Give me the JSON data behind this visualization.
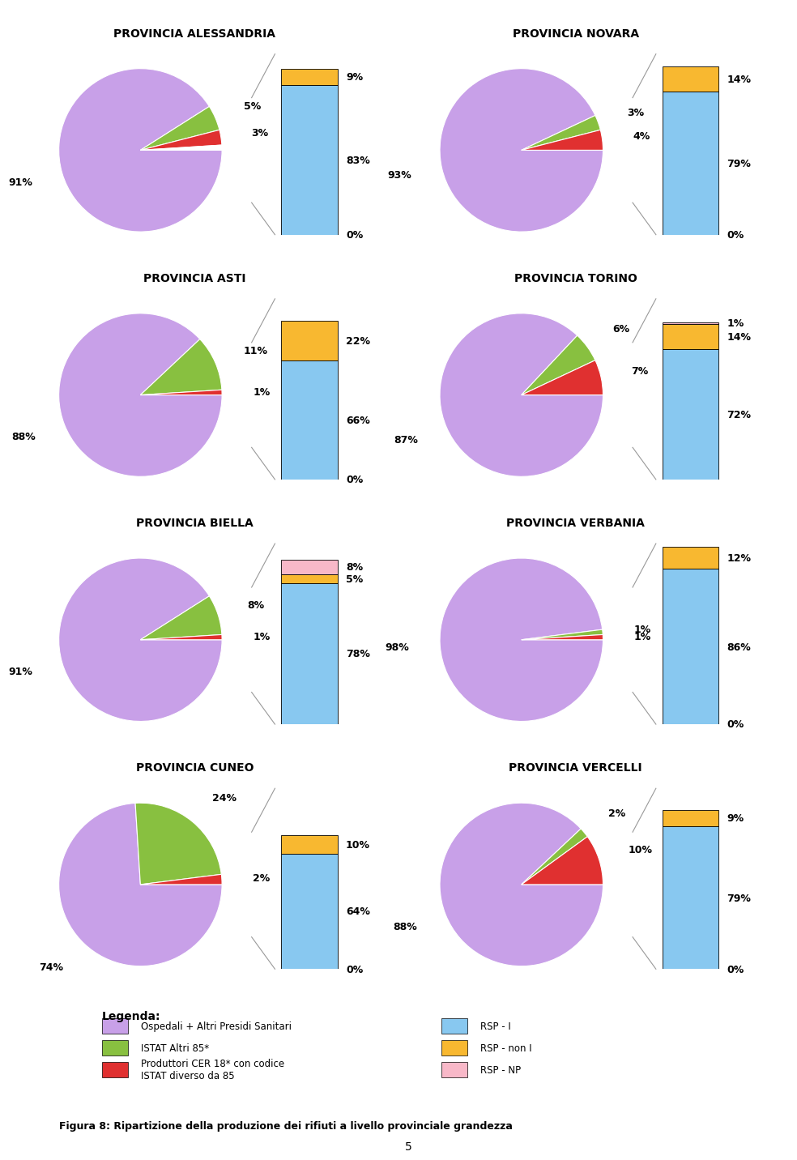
{
  "provinces": [
    {
      "title": "PROVINCIA ALESSANDRIA",
      "pie": [
        91,
        5,
        3,
        1
      ],
      "pie_labels": [
        "91%",
        "5%",
        "3%",
        ""
      ],
      "bar": [
        83,
        9,
        0
      ],
      "bar_labels": [
        "83%",
        "9%",
        "0%"
      ]
    },
    {
      "title": "PROVINCIA NOVARA",
      "pie": [
        93,
        3,
        4,
        0
      ],
      "pie_labels": [
        "93%",
        "3%",
        "4%",
        ""
      ],
      "bar": [
        79,
        14,
        0
      ],
      "bar_labels": [
        "79%",
        "14%",
        "0%"
      ]
    },
    {
      "title": "PROVINCIA ASTI",
      "pie": [
        88,
        11,
        1,
        0
      ],
      "pie_labels": [
        "88%",
        "11%",
        "1%",
        ""
      ],
      "bar": [
        66,
        22,
        0
      ],
      "bar_labels": [
        "66%",
        "22%",
        "0%"
      ]
    },
    {
      "title": "PROVINCIA TORINO",
      "pie": [
        87,
        6,
        7,
        0
      ],
      "pie_labels": [
        "87%",
        "6%",
        "7%",
        ""
      ],
      "bar": [
        72,
        14,
        1
      ],
      "bar_labels": [
        "72%",
        "14%",
        "1%"
      ]
    },
    {
      "title": "PROVINCIA BIELLA",
      "pie": [
        91,
        8,
        1,
        0
      ],
      "pie_labels": [
        "91%",
        "8%",
        "1%",
        ""
      ],
      "bar": [
        78,
        5,
        8
      ],
      "bar_labels": [
        "78%",
        "5%",
        "8%"
      ]
    },
    {
      "title": "PROVINCIA VERBANIA",
      "pie": [
        98,
        1,
        1,
        0
      ],
      "pie_labels": [
        "98%",
        "1%",
        "1%",
        ""
      ],
      "bar": [
        86,
        12,
        0
      ],
      "bar_labels": [
        "86%",
        "12%",
        "0%"
      ]
    },
    {
      "title": "PROVINCIA CUNEO",
      "pie": [
        74,
        24,
        2,
        0
      ],
      "pie_labels": [
        "74%",
        "24%",
        "2%",
        ""
      ],
      "bar": [
        64,
        10,
        0
      ],
      "bar_labels": [
        "64%",
        "10%",
        "0%"
      ]
    },
    {
      "title": "PROVINCIA VERCELLI",
      "pie": [
        88,
        2,
        10,
        0
      ],
      "pie_labels": [
        "88%",
        "2%",
        "10%",
        ""
      ],
      "bar": [
        79,
        9,
        0
      ],
      "bar_labels": [
        "79%",
        "9%",
        "0%"
      ]
    }
  ],
  "pie_colors": [
    "#c8a0e8",
    "#88c040",
    "#e03030",
    "#ffffff"
  ],
  "bar_colors": [
    "#88c8f0",
    "#f8b830",
    "#f8b8c8"
  ],
  "background_color": "#ffffff",
  "border_color": "#993333",
  "caption": "Figura 8: Ripartizione della produzione dei rifiuti a livello provinciale grandezza",
  "title_fontsize": 10,
  "label_fontsize": 9,
  "page_number": "5"
}
